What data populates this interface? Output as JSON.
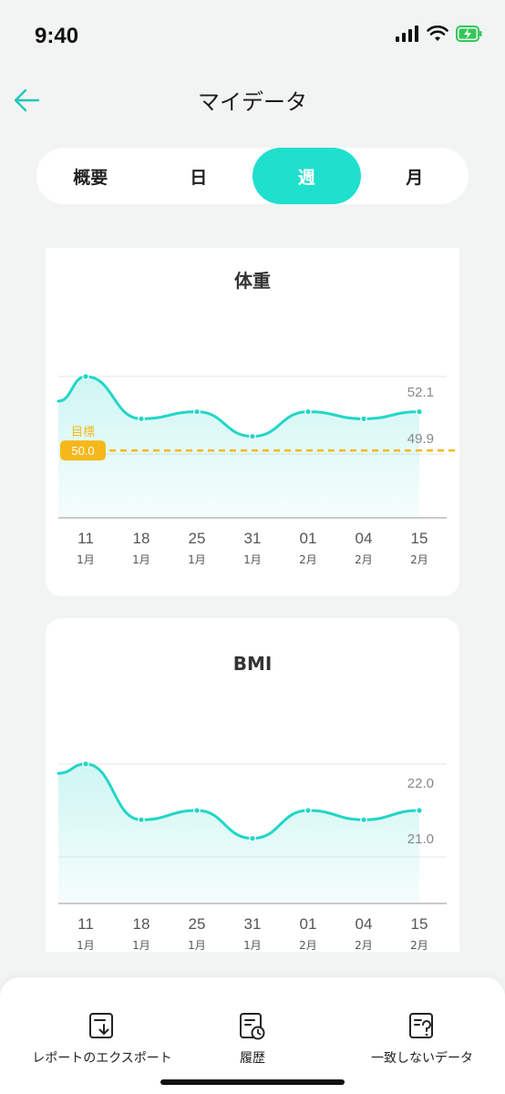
{
  "status": {
    "time": "9:40"
  },
  "nav": {
    "title": "マイデータ"
  },
  "tabs": [
    {
      "label": "概要",
      "active": false
    },
    {
      "label": "日",
      "active": false
    },
    {
      "label": "週",
      "active": true
    },
    {
      "label": "月",
      "active": false
    }
  ],
  "colors": {
    "accent": "#1fe0cd",
    "goal": "#f5b81c",
    "line": "#22d6c6"
  },
  "weight_card": {
    "title": "体重",
    "y_labels": [
      "52.1",
      "49.9"
    ],
    "goal_label": "目標",
    "goal_value": "50.0"
  },
  "bmi_card": {
    "title": "BMI",
    "y_labels": [
      "22.0",
      "21.0"
    ]
  },
  "x_axis": [
    {
      "day": "11",
      "month": "1月"
    },
    {
      "day": "18",
      "month": "1月"
    },
    {
      "day": "25",
      "month": "1月"
    },
    {
      "day": "31",
      "month": "1月"
    },
    {
      "day": "01",
      "month": "2月"
    },
    {
      "day": "04",
      "month": "2月"
    },
    {
      "day": "15",
      "month": "2月"
    }
  ],
  "chart_data": [
    {
      "type": "line",
      "title": "体重",
      "x": [
        "11 1月",
        "18 1月",
        "25 1月",
        "31 1月",
        "01 2月",
        "04 2月",
        "15 2月"
      ],
      "series": [
        {
          "values": [
            52.1,
            50.9,
            51.1,
            50.4,
            51.1,
            50.9,
            51.1
          ]
        }
      ],
      "yticks": [
        52.1,
        49.9
      ],
      "goal": 50.0
    },
    {
      "type": "line",
      "title": "BMI",
      "x": [
        "11 1月",
        "18 1月",
        "25 1月",
        "31 1月",
        "01 2月",
        "04 2月",
        "15 2月"
      ],
      "series": [
        {
          "values": [
            22.0,
            21.4,
            21.5,
            21.2,
            21.5,
            21.4,
            21.5
          ]
        }
      ],
      "yticks": [
        22.0,
        21.0
      ]
    }
  ],
  "bottom_bar": [
    {
      "label": "レポートのエクスポート",
      "icon": "export-icon"
    },
    {
      "label": "履歴",
      "icon": "history-icon"
    },
    {
      "label": "一致しないデータ",
      "icon": "mismatch-data-icon"
    }
  ]
}
